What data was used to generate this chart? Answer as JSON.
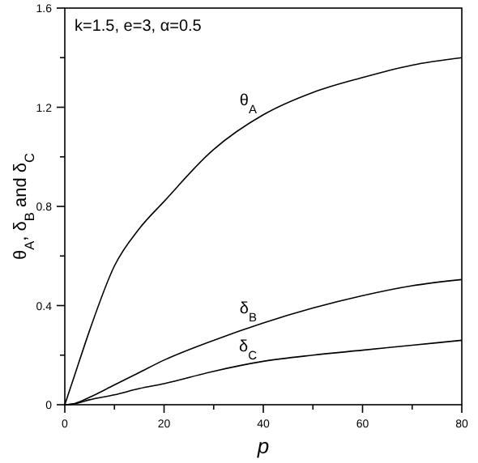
{
  "chart_data": {
    "type": "line",
    "xlabel": "p",
    "ylabel": "θ$_{A}$, δ$_{B}$ and δ$_{C}$",
    "annotations": [
      "k=1.5, e=3, α=0.5"
    ],
    "x": [
      0,
      2,
      5,
      10,
      15,
      20,
      30,
      40,
      50,
      60,
      70,
      80
    ],
    "series": [
      {
        "name": "θ$_{A}$",
        "color": "#000000",
        "values": [
          0,
          0.12,
          0.3,
          0.56,
          0.71,
          0.82,
          1.03,
          1.17,
          1.26,
          1.32,
          1.37,
          1.4
        ]
      },
      {
        "name": "δ$_{B}$",
        "color": "#000000",
        "values": [
          0,
          0.005,
          0.03,
          0.08,
          0.13,
          0.18,
          0.26,
          0.33,
          0.39,
          0.44,
          0.48,
          0.505
        ]
      },
      {
        "name": "δ$_{C}$",
        "color": "#000000",
        "values": [
          0,
          0.004,
          0.02,
          0.04,
          0.065,
          0.085,
          0.135,
          0.175,
          0.2,
          0.22,
          0.24,
          0.26
        ]
      }
    ],
    "xlim": [
      0,
      80
    ],
    "ylim": [
      0,
      1.6
    ],
    "xticks": [
      0,
      {
        "value": 10,
        "label": null
      },
      20,
      {
        "value": 30,
        "label": null
      },
      40,
      {
        "value": 50,
        "label": null
      },
      60,
      {
        "value": 70,
        "label": null
      },
      80
    ],
    "yticks": [
      0,
      {
        "value": 0.2,
        "label": null
      },
      0.4,
      {
        "value": 0.6,
        "label": null
      },
      0.8,
      {
        "value": 1.0,
        "label": null
      },
      1.2,
      {
        "value": 1.4,
        "label": null
      },
      1.6
    ],
    "grid": false,
    "marker": "none",
    "line_style": "solid"
  }
}
